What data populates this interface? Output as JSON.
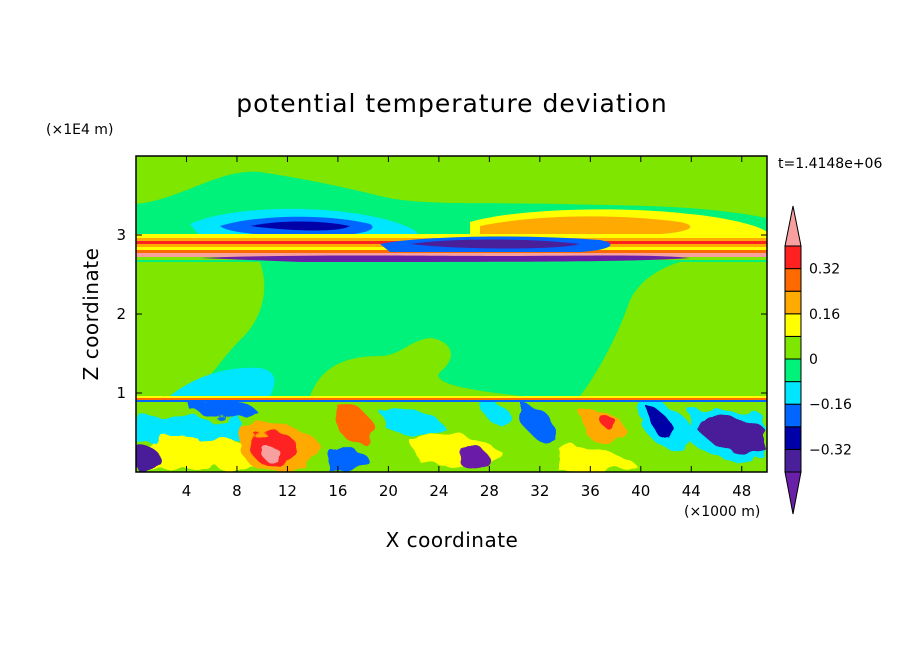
{
  "chart_data": {
    "type": "heatmap",
    "title": "potential temperature deviation",
    "xlabel": "X coordinate",
    "ylabel": "Z coordinate",
    "x_unit": "(×1000 m)",
    "y_unit": "(×1E4 m)",
    "time_label": "t=1.4148e+06",
    "xlim": [
      0,
      50
    ],
    "ylim": [
      0,
      4
    ],
    "x_ticks": [
      "4",
      "8",
      "12",
      "16",
      "20",
      "24",
      "28",
      "32",
      "36",
      "40",
      "44",
      "48"
    ],
    "y_ticks": [
      "1",
      "2",
      "3"
    ],
    "colorbar": {
      "levels": [
        -0.4,
        -0.32,
        -0.24,
        -0.16,
        -0.08,
        0,
        0.08,
        0.16,
        0.24,
        0.32,
        0.4
      ],
      "tick_labels": [
        "0.32",
        "0.16",
        "0",
        "−0.16",
        "−0.32"
      ],
      "colors": [
        "#6a1fa8",
        "#4a1f9a",
        "#0000a8",
        "#0066ff",
        "#00e6ff",
        "#00f27a",
        "#7fe600",
        "#ffff00",
        "#ffaa00",
        "#ff6a00",
        "#ff2020",
        "#f8a0a0"
      ],
      "extend": "both"
    },
    "grid": false
  }
}
